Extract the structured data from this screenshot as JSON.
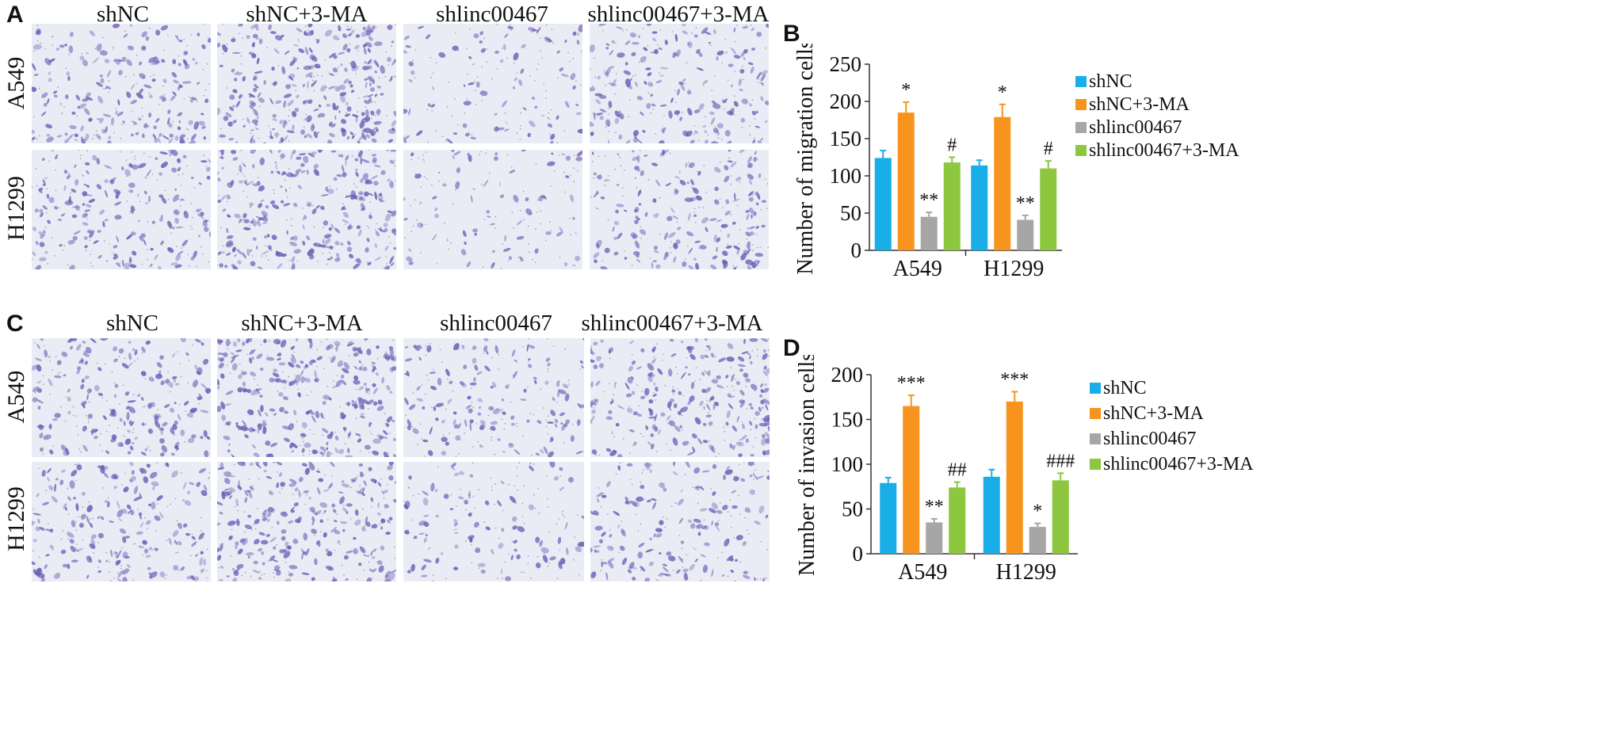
{
  "panels": {
    "A": {
      "letter": "A",
      "columns": [
        "shNC",
        "shNC+3-MA",
        "shlinc00467",
        "shlinc00467+3-MA"
      ],
      "rows": [
        "A549",
        "H1299"
      ]
    },
    "C": {
      "letter": "C",
      "columns": [
        "shNC",
        "shNC+3-MA",
        "shlinc00467",
        "shlinc00467+3-MA"
      ],
      "rows": [
        "A549",
        "H1299"
      ]
    },
    "B": {
      "letter": "B"
    },
    "D": {
      "letter": "D"
    }
  },
  "colors": {
    "shNC": "#1aaee8",
    "shNC+3-MA": "#f7941d",
    "shlinc00467": "#a6a6a6",
    "shlinc00467+3-MA": "#8dc63f",
    "stain": "#6a5bb5",
    "micro_bg": "#e9ecf4"
  },
  "chart_data": [
    {
      "type": "bar",
      "panel": "B",
      "categories": [
        "A549",
        "H1299"
      ],
      "ylabel": "Number of migration cells",
      "ylim": [
        0,
        250
      ],
      "yticks": [
        0,
        50,
        100,
        150,
        200,
        250
      ],
      "legend_position": "right",
      "series": [
        {
          "name": "shNC",
          "values": [
            124,
            114
          ],
          "errors": [
            10,
            7
          ],
          "marks": [
            "",
            ""
          ]
        },
        {
          "name": "shNC+3-MA",
          "values": [
            185,
            179
          ],
          "errors": [
            14,
            17
          ],
          "marks": [
            "*",
            "*"
          ]
        },
        {
          "name": "shlinc00467",
          "values": [
            45,
            41
          ],
          "errors": [
            6,
            6
          ],
          "marks": [
            "**",
            "**"
          ]
        },
        {
          "name": "shlinc00467+3-MA",
          "values": [
            118,
            110
          ],
          "errors": [
            7,
            10
          ],
          "marks": [
            "#",
            "#"
          ]
        }
      ]
    },
    {
      "type": "bar",
      "panel": "D",
      "categories": [
        "A549",
        "H1299"
      ],
      "ylabel": "Number of invasion cells",
      "ylim": [
        0,
        200
      ],
      "yticks": [
        0,
        50,
        100,
        150,
        200
      ],
      "legend_position": "right",
      "series": [
        {
          "name": "shNC",
          "values": [
            79,
            86
          ],
          "errors": [
            6,
            8
          ],
          "marks": [
            "",
            ""
          ]
        },
        {
          "name": "shNC+3-MA",
          "values": [
            165,
            170
          ],
          "errors": [
            12,
            11
          ],
          "marks": [
            "***",
            "***"
          ]
        },
        {
          "name": "shlinc00467",
          "values": [
            35,
            30
          ],
          "errors": [
            4,
            4
          ],
          "marks": [
            "**",
            "*"
          ]
        },
        {
          "name": "shlinc00467+3-MA",
          "values": [
            74,
            82
          ],
          "errors": [
            6,
            8
          ],
          "marks": [
            "##",
            "###"
          ]
        }
      ]
    }
  ]
}
